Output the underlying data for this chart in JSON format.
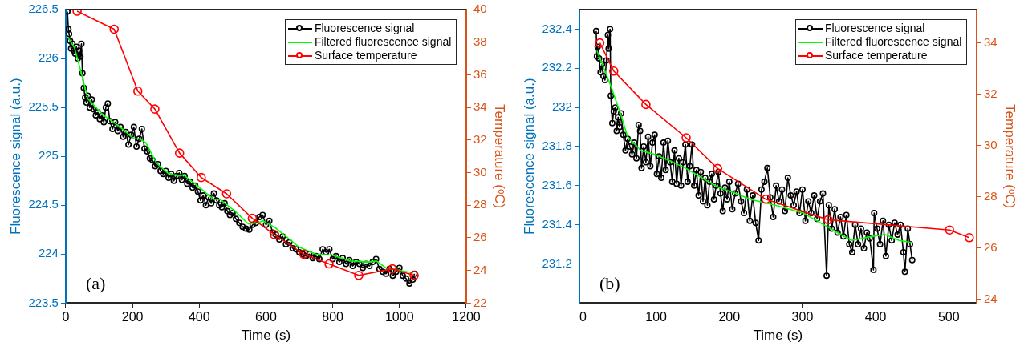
{
  "chart_data": [
    {
      "type": "line",
      "xlabel": "Time (s)",
      "ylabel": "Fluorescence signal (a.u.)",
      "y2label": "Temperature (ᵒC)",
      "annotations": [
        "(a)"
      ],
      "xlim": [
        0,
        1200
      ],
      "xticks": [
        0,
        200,
        400,
        600,
        800,
        1000,
        1200
      ],
      "ylim": [
        223.5,
        226.5
      ],
      "yticks": [
        223.5,
        224,
        224.5,
        225,
        225.5,
        226,
        226.5
      ],
      "y2lim": [
        22,
        40
      ],
      "y2ticks": [
        22,
        24,
        26,
        28,
        30,
        32,
        34,
        36,
        38,
        40
      ],
      "grid": false,
      "legend": "top right",
      "line_style": "solid",
      "series": [
        {
          "name": "Fluorescence signal",
          "color": "#000000",
          "marker": "circle",
          "x": [
            5,
            8,
            10,
            13,
            16,
            20,
            24,
            28,
            32,
            36,
            40,
            44,
            47,
            50,
            54,
            58,
            62,
            66,
            72,
            78,
            84,
            90,
            96,
            102,
            108,
            114,
            120,
            126,
            132,
            140,
            148,
            156,
            164,
            172,
            180,
            188,
            196,
            204,
            212,
            220,
            228,
            236,
            244,
            252,
            260,
            268,
            276,
            284,
            292,
            300,
            308,
            316,
            324,
            332,
            340,
            348,
            356,
            364,
            372,
            380,
            388,
            396,
            404,
            412,
            420,
            428,
            436,
            444,
            452,
            460,
            468,
            476,
            484,
            492,
            500,
            510,
            520,
            530,
            540,
            550,
            560,
            570,
            580,
            590,
            600,
            610,
            620,
            630,
            640,
            650,
            660,
            670,
            680,
            690,
            700,
            710,
            720,
            730,
            740,
            750,
            760,
            770,
            780,
            790,
            800,
            810,
            820,
            830,
            840,
            850,
            860,
            870,
            880,
            890,
            900,
            910,
            920,
            930,
            940,
            950,
            960,
            970,
            980,
            990,
            1000,
            1010,
            1020,
            1030,
            1040,
            1045
          ],
          "values": [
            226.48,
            226.3,
            226.25,
            226.18,
            226.1,
            226.15,
            226.08,
            226.05,
            226.12,
            226,
            226.08,
            226.02,
            226.15,
            225.85,
            225.7,
            225.6,
            225.55,
            225.62,
            225.5,
            225.58,
            225.48,
            225.42,
            225.45,
            225.38,
            225.42,
            225.35,
            225.5,
            225.54,
            225.36,
            225.28,
            225.35,
            225.26,
            225.3,
            225.2,
            225.25,
            225.12,
            225.22,
            225.3,
            225.1,
            225.18,
            225.28,
            225.08,
            225.05,
            224.98,
            224.96,
            224.9,
            224.92,
            224.85,
            224.82,
            224.85,
            224.78,
            224.82,
            224.75,
            224.8,
            224.83,
            224.76,
            224.8,
            224.72,
            224.74,
            224.68,
            224.7,
            224.64,
            224.55,
            224.6,
            224.5,
            224.58,
            224.52,
            224.62,
            224.55,
            224.5,
            224.48,
            224.52,
            224.44,
            224.4,
            224.42,
            224.36,
            224.32,
            224.28,
            224.26,
            224.25,
            224.3,
            224.32,
            224.38,
            224.4,
            224.3,
            224.34,
            224.22,
            224.2,
            224.15,
            224.18,
            224.1,
            224.12,
            224.06,
            224.05,
            224.02,
            224,
            223.98,
            224,
            223.96,
            223.98,
            223.95,
            224.05,
            224.02,
            224.05,
            223.95,
            223.98,
            223.92,
            223.96,
            223.9,
            223.94,
            223.88,
            223.92,
            223.9,
            223.86,
            223.9,
            223.88,
            223.92,
            223.95,
            223.85,
            223.82,
            223.8,
            223.85,
            223.78,
            223.82,
            223.86,
            223.78,
            223.75,
            223.7,
            223.74,
            223.8
          ]
        },
        {
          "name": "Filtered fluorescence signal",
          "color": "#00ff00",
          "marker": "none",
          "x": [
            8,
            26,
            46,
            66,
            107,
            113,
            159,
            204,
            220,
            240,
            272,
            305,
            337,
            353,
            402,
            442,
            462,
            507,
            547,
            575,
            591,
            628,
            700,
            749,
            797,
            854,
            911,
            931,
            959,
            1040
          ],
          "values": [
            226.21,
            226.11,
            225.86,
            225.59,
            225.44,
            225.42,
            225.31,
            225.18,
            225.18,
            225.14,
            224.93,
            224.83,
            224.8,
            224.81,
            224.68,
            224.56,
            224.56,
            224.44,
            224.31,
            224.32,
            224.34,
            224.27,
            224.07,
            224,
            223.99,
            223.93,
            223.92,
            223.93,
            223.86,
            223.81
          ]
        },
        {
          "name": "Surface temperature",
          "color": "#ff0000",
          "marker": "circle",
          "axis": "y2",
          "x": [
            34,
            145,
            216,
            267,
            341,
            406,
            482,
            559,
            625,
            713,
            789,
            878,
            979,
            1044
          ],
          "values": [
            39.9,
            38.8,
            35,
            33.9,
            31.2,
            29.7,
            28.7,
            27.2,
            26.2,
            25,
            24.4,
            23.7,
            24.1,
            23.7
          ]
        }
      ]
    },
    {
      "type": "line",
      "xlabel": "Time (s)",
      "ylabel": "Fluorescence signal (a.u.)",
      "y2label": "Temperature (ᵒC)",
      "annotations": [
        "(b)"
      ],
      "xlim": [
        -5,
        538
      ],
      "xticks": [
        0,
        100,
        200,
        300,
        400,
        500
      ],
      "ylim": [
        231,
        232.5
      ],
      "yticks": [
        231.2,
        231.4,
        231.6,
        231.8,
        232,
        232.2,
        232.4
      ],
      "y2lim": [
        23.85,
        35.3
      ],
      "y2ticks": [
        24,
        26,
        28,
        30,
        32,
        34
      ],
      "grid": false,
      "legend": "top right",
      "line_style": "solid",
      "series": [
        {
          "name": "Fluorescence signal",
          "color": "#000000",
          "marker": "circle",
          "x": [
            18,
            19,
            20,
            22,
            24,
            26,
            28,
            30,
            32,
            34,
            35,
            37,
            38,
            40,
            42,
            44,
            46,
            48,
            50,
            52,
            55,
            58,
            61,
            64,
            67,
            70,
            73,
            76,
            78,
            80,
            83,
            86,
            89,
            92,
            95,
            98,
            101,
            104,
            107,
            110,
            113,
            116,
            119,
            122,
            125,
            128,
            131,
            134,
            137,
            140,
            143,
            146,
            149,
            152,
            155,
            158,
            161,
            164,
            167,
            170,
            173,
            176,
            179,
            182,
            185,
            188,
            191,
            194,
            197,
            200,
            204,
            208,
            212,
            216,
            220,
            224,
            228,
            232,
            236,
            240,
            244,
            248,
            252,
            256,
            260,
            264,
            268,
            272,
            276,
            280,
            284,
            288,
            292,
            296,
            300,
            304,
            308,
            312,
            316,
            320,
            324,
            328,
            333,
            336,
            340,
            344,
            348,
            352,
            356,
            360,
            364,
            368,
            372,
            376,
            380,
            384,
            388,
            392,
            397,
            398,
            402,
            406,
            410,
            414,
            418,
            422,
            426,
            430,
            434,
            438,
            440,
            444,
            447,
            450
          ],
          "values": [
            232.39,
            232.26,
            232.31,
            232.25,
            232.18,
            232.22,
            232.16,
            232.14,
            232.24,
            232.37,
            232.3,
            232.4,
            232.06,
            231.92,
            231.98,
            232,
            231.88,
            231.95,
            231.9,
            231.97,
            231.86,
            231.78,
            231.84,
            231.8,
            231.76,
            231.82,
            231.74,
            231.91,
            231.88,
            231.69,
            231.8,
            231.72,
            231.85,
            231.7,
            231.82,
            231.86,
            231.66,
            231.75,
            231.64,
            231.82,
            231.68,
            231.83,
            231.72,
            231.62,
            231.78,
            231.61,
            231.74,
            231.6,
            231.72,
            231.81,
            231.62,
            231.7,
            231.81,
            231.6,
            231.68,
            231.55,
            231.67,
            231.52,
            231.64,
            231.5,
            231.62,
            231.66,
            231.53,
            231.6,
            231.67,
            231.56,
            231.47,
            231.59,
            231.53,
            231.62,
            231.48,
            231.56,
            231.61,
            231.52,
            231.46,
            231.58,
            231.42,
            231.55,
            231.41,
            231.32,
            231.58,
            231.62,
            231.69,
            231.54,
            231.44,
            231.6,
            231.52,
            231.58,
            231.47,
            231.64,
            231.55,
            231.5,
            231.57,
            231.46,
            231.58,
            231.42,
            231.52,
            231.46,
            231.55,
            231.43,
            231.52,
            231.56,
            231.14,
            231.5,
            231.38,
            231.48,
            231.36,
            231.44,
            231.34,
            231.45,
            231.3,
            231.26,
            231.4,
            231.3,
            231.38,
            231.28,
            231.36,
            231.33,
            231.17,
            231.46,
            231.38,
            231.3,
            231.42,
            231.24,
            231.4,
            231.32,
            231.41,
            231.35,
            231.4,
            231.26,
            231.16,
            231.38,
            231.3,
            231.22
          ]
        },
        {
          "name": "Filtered fluorescence signal",
          "color": "#00ff00",
          "marker": "none",
          "x": [
            19,
            38,
            52,
            61,
            79,
            98,
            117,
            140,
            167,
            186,
            209,
            229,
            263,
            301,
            348,
            367,
            394,
            413,
            432,
            449
          ],
          "values": [
            232.29,
            232.11,
            231.96,
            231.85,
            231.78,
            231.76,
            231.73,
            231.69,
            231.63,
            231.59,
            231.56,
            231.53,
            231.5,
            231.46,
            231.36,
            231.32,
            231.34,
            231.35,
            231.32,
            231.31
          ]
        },
        {
          "name": "Surface temperature",
          "color": "#ff0000",
          "marker": "circle",
          "axis": "y2",
          "x": [
            23,
            42,
            86,
            141,
            184,
            250,
            335,
            501,
            528
          ],
          "values": [
            34,
            32.9,
            31.6,
            30.3,
            29.1,
            27.9,
            27.1,
            26.7,
            26.4
          ]
        }
      ]
    }
  ]
}
